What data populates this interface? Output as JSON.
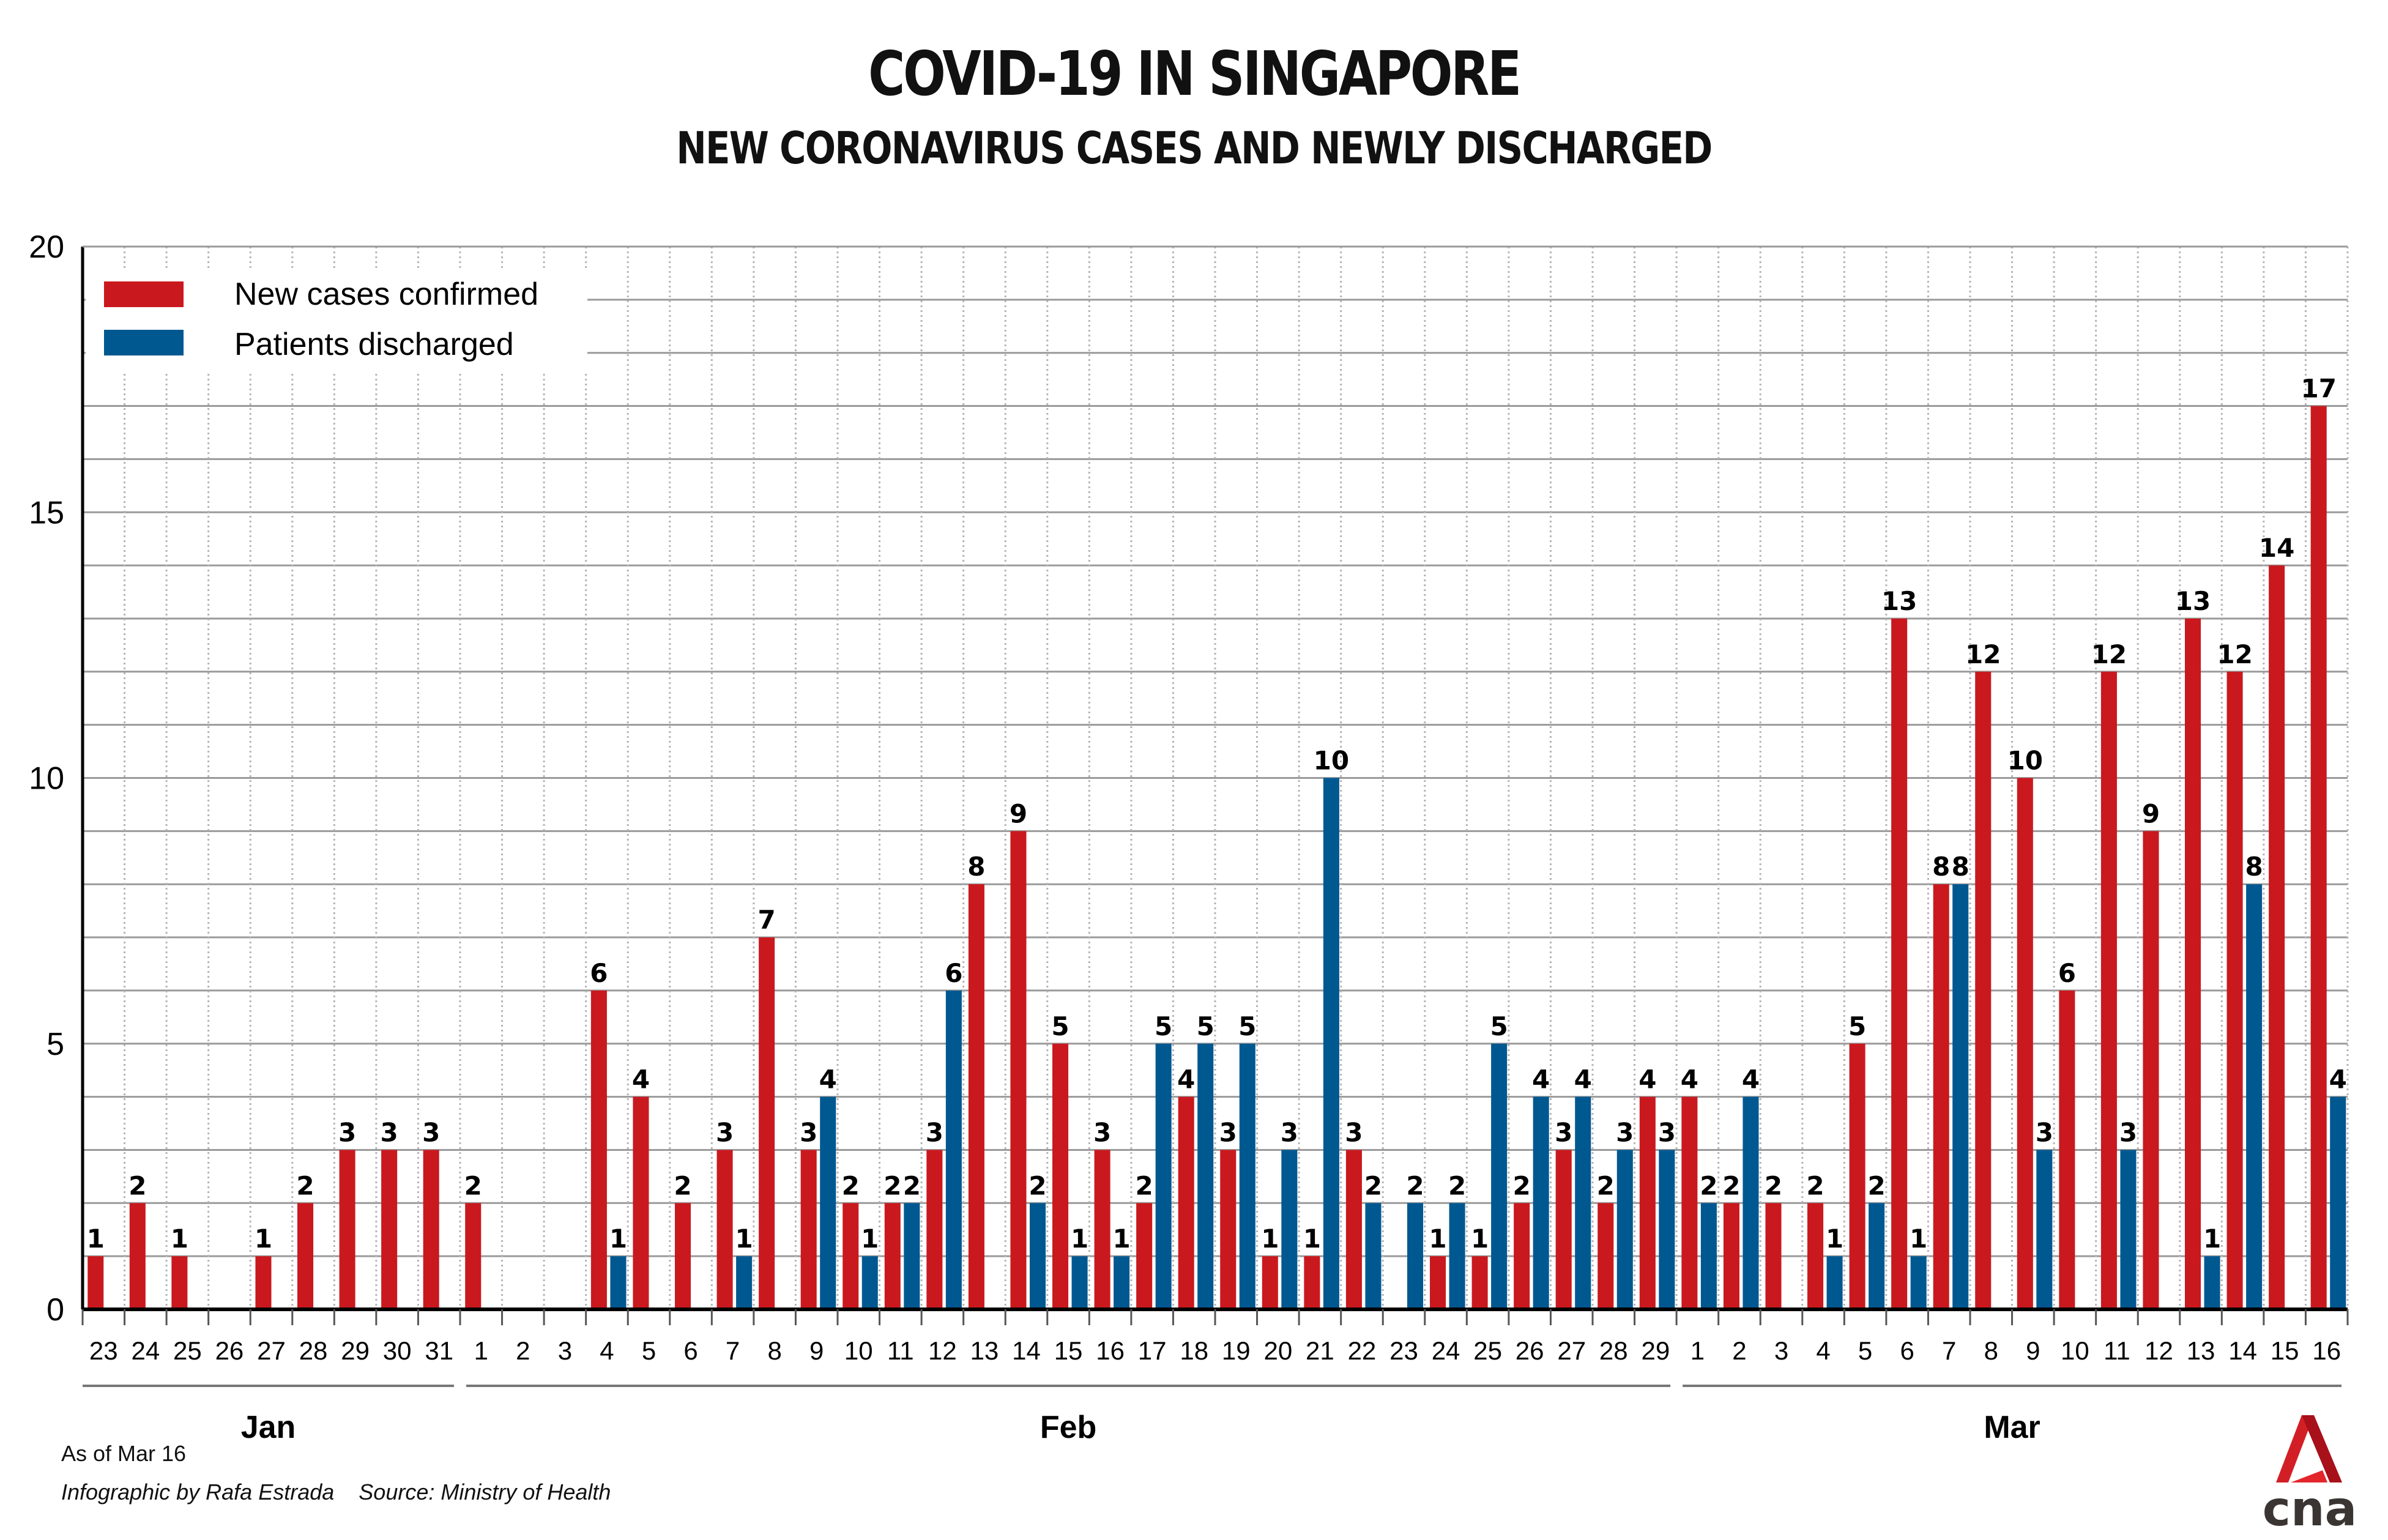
{
  "header": {
    "title": "COVID-19 IN SINGAPORE",
    "subtitle": "NEW CORONAVIRUS CASES AND NEWLY DISCHARGED"
  },
  "footer": {
    "as_of": "As of Mar 16",
    "credit": "Infographic by Rafa Estrada",
    "source": "Source: Ministry of Health"
  },
  "logo": {
    "text": "cna",
    "icon": "cna-logo-icon"
  },
  "colors": {
    "new_cases": "#C9191E",
    "discharged": "#005891"
  },
  "chart_data": {
    "type": "bar",
    "title": "COVID-19 IN SINGAPORE",
    "subtitle": "NEW CORONAVIRUS CASES AND NEWLY DISCHARGED",
    "xlabel": "",
    "ylabel": "",
    "ylim": [
      0,
      20
    ],
    "yticks": [
      0,
      5,
      10,
      15,
      20
    ],
    "grid": true,
    "legend_position": "top-left",
    "months": [
      {
        "name": "Jan",
        "days": [
          "23",
          "24",
          "25",
          "26",
          "27",
          "28",
          "29",
          "30",
          "31"
        ]
      },
      {
        "name": "Feb",
        "days": [
          "1",
          "2",
          "3",
          "4",
          "5",
          "6",
          "7",
          "8",
          "9",
          "10",
          "11",
          "12",
          "13",
          "14",
          "15",
          "16",
          "17",
          "18",
          "19",
          "20",
          "21",
          "22",
          "23",
          "24",
          "25",
          "26",
          "27",
          "28",
          "29"
        ]
      },
      {
        "name": "Mar",
        "days": [
          "1",
          "2",
          "3",
          "4",
          "5",
          "6",
          "7",
          "8",
          "9",
          "10",
          "11",
          "12",
          "13",
          "14",
          "15",
          "16"
        ]
      }
    ],
    "series": [
      {
        "name": "New cases confirmed",
        "color": "#C9191E",
        "values": [
          1,
          2,
          1,
          0,
          1,
          2,
          3,
          3,
          3,
          2,
          0,
          0,
          6,
          4,
          2,
          3,
          7,
          3,
          2,
          2,
          3,
          8,
          9,
          5,
          3,
          2,
          4,
          3,
          1,
          1,
          3,
          0,
          1,
          1,
          2,
          3,
          2,
          4,
          4,
          2,
          2,
          2,
          5,
          13,
          8,
          12,
          10,
          6,
          12,
          9,
          13,
          12,
          14,
          17
        ]
      },
      {
        "name": "Patients discharged",
        "color": "#005891",
        "values": [
          0,
          0,
          0,
          0,
          0,
          0,
          0,
          0,
          0,
          0,
          0,
          0,
          1,
          0,
          0,
          1,
          0,
          4,
          1,
          2,
          6,
          0,
          2,
          1,
          1,
          5,
          5,
          5,
          3,
          10,
          2,
          2,
          2,
          5,
          4,
          4,
          3,
          3,
          2,
          4,
          0,
          1,
          2,
          1,
          8,
          0,
          3,
          0,
          3,
          0,
          1,
          8,
          0,
          4
        ]
      }
    ]
  }
}
